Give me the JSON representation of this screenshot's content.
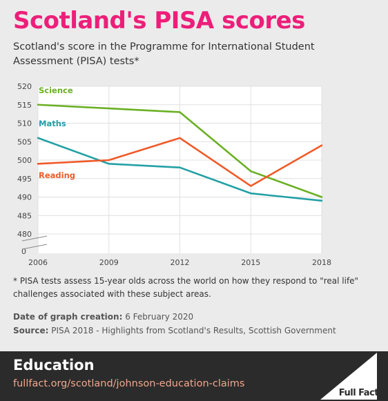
{
  "header": {
    "title": "Scotland's PISA scores",
    "subtitle": "Scotland's score in the Programme for International Student Assessment (PISA) tests*"
  },
  "chart_data": {
    "type": "line",
    "x": [
      "2006",
      "2009",
      "2012",
      "2015",
      "2018"
    ],
    "yticks": [
      "520",
      "515",
      "510",
      "505",
      "500",
      "495",
      "490",
      "485",
      "480",
      "0"
    ],
    "ylim": [
      480,
      520
    ],
    "axis_break": true,
    "grid": true,
    "series": [
      {
        "name": "Science",
        "color": "#6ab023",
        "values": [
          515,
          514,
          513,
          497,
          490
        ]
      },
      {
        "name": "Maths",
        "color": "#23a0a5",
        "values": [
          506,
          499,
          498,
          491,
          489
        ]
      },
      {
        "name": "Reading",
        "color": "#f05a28",
        "values": [
          499,
          500,
          506,
          493,
          504
        ]
      }
    ]
  },
  "footnote": "* PISA tests assess 15-year olds across the world on how they respond to \"real life\" challenges associated with these subject areas.",
  "meta": {
    "date_label": "Date of graph creation:",
    "date_value": "6 February 2020",
    "source_label": "Source:",
    "source_value": "PISA 2018 - Highlights from Scotland's Results, Scottish Government"
  },
  "footer": {
    "section": "Education",
    "link": "fullfact.org/scotland/johnson-education-claims",
    "brand": "Full Fact"
  }
}
